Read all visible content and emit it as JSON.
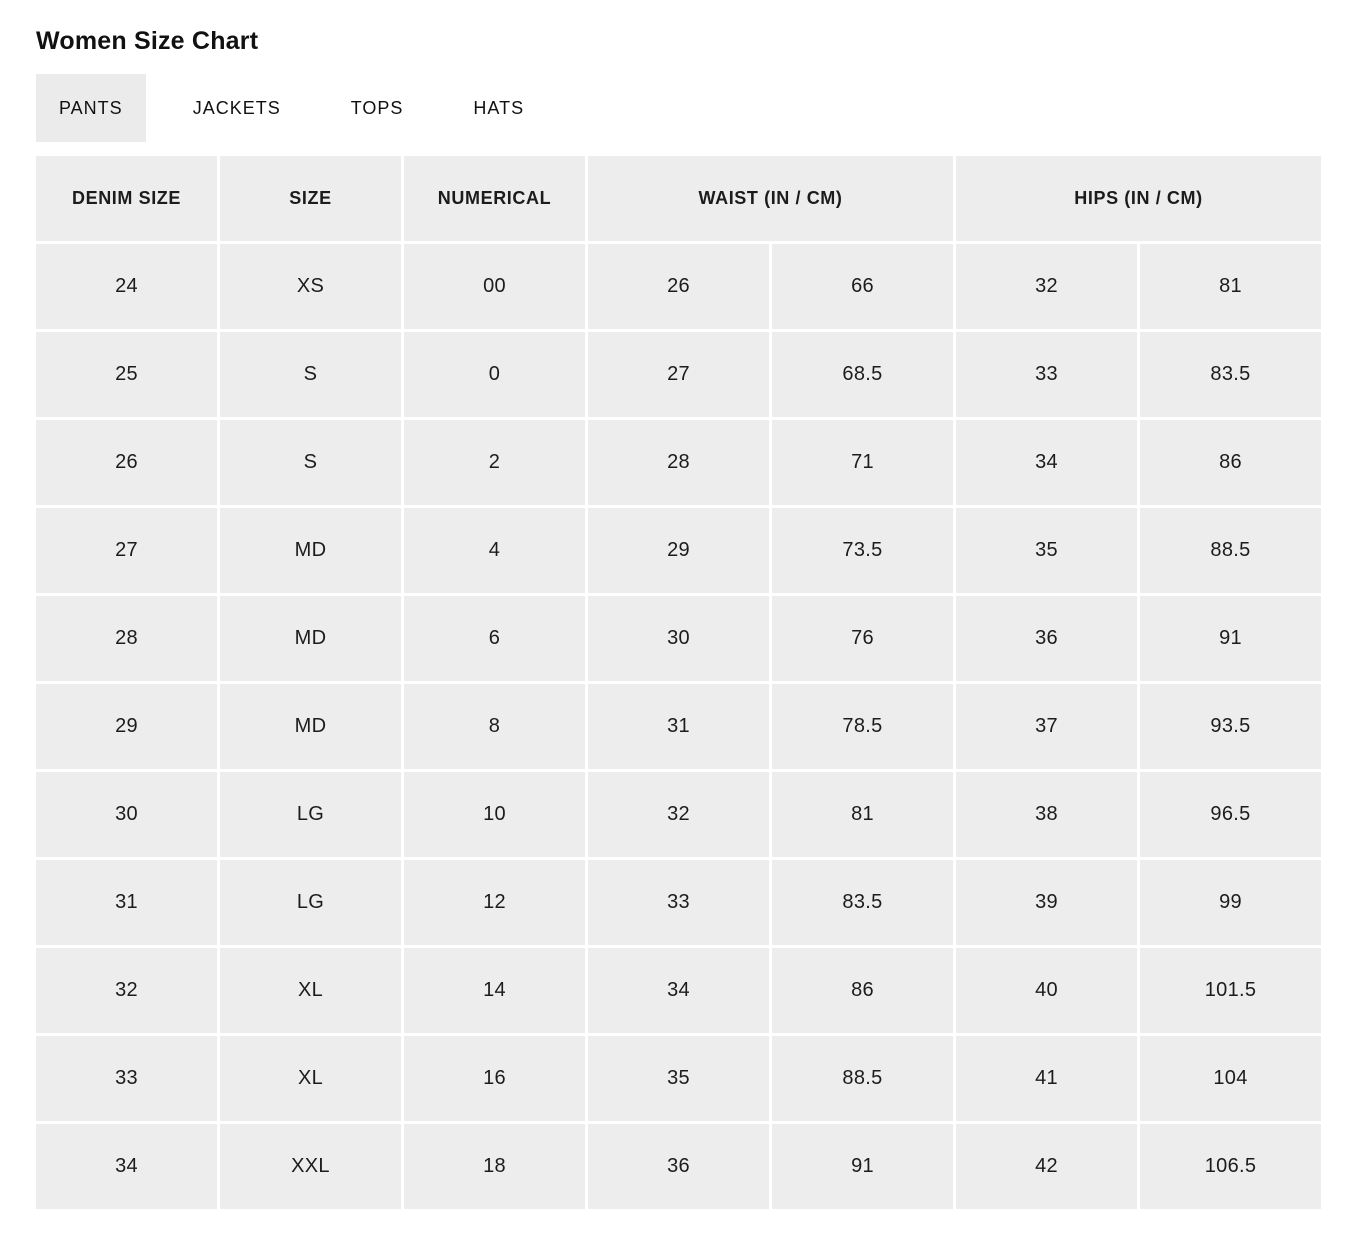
{
  "page": {
    "title": "Women Size Chart"
  },
  "tabs": [
    {
      "label": "PANTS",
      "active": true
    },
    {
      "label": "JACKETS",
      "active": false
    },
    {
      "label": "TOPS",
      "active": false
    },
    {
      "label": "HATS",
      "active": false
    }
  ],
  "table": {
    "columns": [
      "DENIM SIZE",
      "SIZE",
      "NUMERICAL",
      "WAIST (IN / CM)",
      "HIPS (IN / CM)"
    ],
    "rows": [
      [
        "24",
        "XS",
        "00",
        "26",
        "66",
        "32",
        "81"
      ],
      [
        "25",
        "S",
        "0",
        "27",
        "68.5",
        "33",
        "83.5"
      ],
      [
        "26",
        "S",
        "2",
        "28",
        "71",
        "34",
        "86"
      ],
      [
        "27",
        "MD",
        "4",
        "29",
        "73.5",
        "35",
        "88.5"
      ],
      [
        "28",
        "MD",
        "6",
        "30",
        "76",
        "36",
        "91"
      ],
      [
        "29",
        "MD",
        "8",
        "31",
        "78.5",
        "37",
        "93.5"
      ],
      [
        "30",
        "LG",
        "10",
        "32",
        "81",
        "38",
        "96.5"
      ],
      [
        "31",
        "LG",
        "12",
        "33",
        "83.5",
        "39",
        "99"
      ],
      [
        "32",
        "XL",
        "14",
        "34",
        "86",
        "40",
        "101.5"
      ],
      [
        "33",
        "XL",
        "16",
        "35",
        "88.5",
        "41",
        "104"
      ],
      [
        "34",
        "XXL",
        "18",
        "36",
        "91",
        "42",
        "106.5"
      ]
    ]
  },
  "colors": {
    "cell_bg": "#ededed",
    "active_tab_bg": "#ebebeb",
    "text": "#1c1c1c"
  }
}
